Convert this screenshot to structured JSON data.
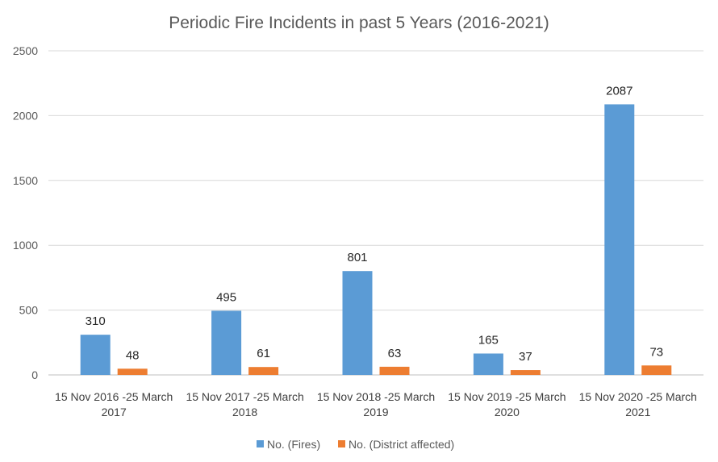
{
  "chart_data": {
    "type": "bar",
    "title": "Periodic Fire Incidents in past 5 Years (2016-2021)",
    "xlabel": "",
    "ylabel": "",
    "ylim": [
      0,
      2500
    ],
    "yticks": [
      0,
      500,
      1000,
      1500,
      2000,
      2500
    ],
    "grid": true,
    "legend_position": "bottom",
    "categories": [
      [
        "15 Nov 2016 -25 March",
        "2017"
      ],
      [
        "15 Nov 2017 -25 March",
        "2018"
      ],
      [
        "15 Nov 2018 -25 March",
        "2019"
      ],
      [
        "15 Nov 2019 -25 March",
        "2020"
      ],
      [
        "15 Nov 2020 -25 March",
        "2021"
      ]
    ],
    "series": [
      {
        "name": "No. (Fires)",
        "color": "#5B9BD5",
        "values": [
          310,
          495,
          801,
          165,
          2087
        ]
      },
      {
        "name": "No. (District affected)",
        "color": "#ED7D31",
        "values": [
          48,
          61,
          63,
          37,
          73
        ]
      }
    ]
  }
}
